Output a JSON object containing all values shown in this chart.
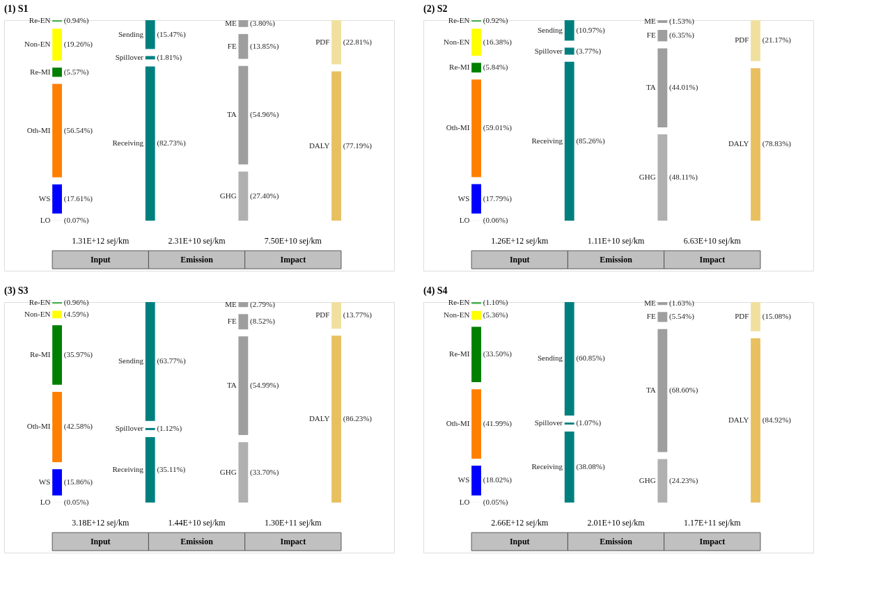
{
  "chart_data": [
    {
      "type": "other",
      "title": "(1) S1",
      "annotations": [
        "1.31E+12 sej/km",
        "2.31E+10 sej/km",
        "7.50E+10 sej/km",
        "Input",
        "Emission",
        "Impact"
      ],
      "categories": [
        "Re-EN",
        "Non-EN",
        "Re-MI",
        "Oth-MI",
        "WS",
        "LO"
      ],
      "values": [
        0.94,
        19.26,
        5.57,
        56.54,
        17.61,
        0.07
      ],
      "value_labels": [
        "(0.94%)",
        "(19.26%)",
        "(5.57%)",
        "(56.54%)",
        "(17.61%)",
        "(0.07%)"
      ],
      "colors": [
        "#4caf50",
        "#ffff00",
        "#007f00",
        "#ff7f00",
        "#0000ff",
        "#aaaaaa"
      ]
    },
    {
      "type": "other",
      "categories": [
        "Sending",
        "Spillover",
        "Receiving"
      ],
      "values": [
        15.47,
        1.81,
        82.73
      ],
      "value_labels": [
        "(15.47%)",
        "(1.81%)",
        "(82.73%)"
      ],
      "colors": [
        "#007f7f",
        "#007f7f",
        "#007f7f"
      ]
    },
    {
      "type": "other",
      "categories": [
        "ME",
        "FE",
        "TA",
        "GHG"
      ],
      "values": [
        3.8,
        13.85,
        54.96,
        27.4
      ],
      "value_labels": [
        "(3.80%)",
        "(13.85%)",
        "(54.96%)",
        "(27.40%)"
      ],
      "colors": [
        "#9e9e9e",
        "#9e9e9e",
        "#9e9e9e",
        "#b0b0b0"
      ]
    },
    {
      "type": "other",
      "categories": [
        "PDF",
        "DALY"
      ],
      "values": [
        22.81,
        77.19
      ],
      "value_labels": [
        "(22.81%)",
        "(77.19%)"
      ],
      "colors": [
        "#f0e0a0",
        "#e8c060"
      ]
    },
    {
      "type": "other",
      "title": "(2) S2",
      "annotations": [
        "1.26E+12 sej/km",
        "1.11E+10 sej/km",
        "6.63E+10 sej/km",
        "Input",
        "Emission",
        "Impact"
      ],
      "categories": [
        "Re-EN",
        "Non-EN",
        "Re-MI",
        "Oth-MI",
        "WS",
        "LO"
      ],
      "values": [
        0.92,
        16.38,
        5.84,
        59.01,
        17.79,
        0.06
      ],
      "value_labels": [
        "(0.92%)",
        "(16.38%)",
        "(5.84%)",
        "(59.01%)",
        "(17.79%)",
        "(0.06%)"
      ],
      "colors": [
        "#4caf50",
        "#ffff00",
        "#007f00",
        "#ff7f00",
        "#0000ff",
        "#aaaaaa"
      ]
    },
    {
      "type": "other",
      "categories": [
        "Sending",
        "Spillover",
        "Receiving"
      ],
      "values": [
        10.97,
        3.77,
        85.26
      ],
      "value_labels": [
        "(10.97%)",
        "(3.77%)",
        "(85.26%)"
      ],
      "colors": [
        "#007f7f",
        "#007f7f",
        "#007f7f"
      ]
    },
    {
      "type": "other",
      "categories": [
        "ME",
        "FE",
        "TA",
        "GHG"
      ],
      "values": [
        1.53,
        6.35,
        44.01,
        48.11
      ],
      "value_labels": [
        "(1.53%)",
        "(6.35%)",
        "(44.01%)",
        "(48.11%)"
      ],
      "colors": [
        "#9e9e9e",
        "#9e9e9e",
        "#9e9e9e",
        "#b0b0b0"
      ]
    },
    {
      "type": "other",
      "categories": [
        "PDF",
        "DALY"
      ],
      "values": [
        21.17,
        78.83
      ],
      "value_labels": [
        "(21.17%)",
        "(78.83%)"
      ],
      "colors": [
        "#f0e0a0",
        "#e8c060"
      ]
    },
    {
      "type": "other",
      "title": "(3) S3",
      "annotations": [
        "3.18E+12 sej/km",
        "1.44E+10 sej/km",
        "1.30E+11 sej/km",
        "Input",
        "Emission",
        "Impact"
      ],
      "categories": [
        "Re-EN",
        "Non-EN",
        "Re-MI",
        "Oth-MI",
        "WS",
        "LO"
      ],
      "values": [
        0.96,
        4.59,
        35.97,
        42.58,
        15.86,
        0.05
      ],
      "value_labels": [
        "(0.96%)",
        "(4.59%)",
        "(35.97%)",
        "(42.58%)",
        "(15.86%)",
        "(0.05%)"
      ],
      "colors": [
        "#4caf50",
        "#ffff00",
        "#007f00",
        "#ff7f00",
        "#0000ff",
        "#aaaaaa"
      ]
    },
    {
      "type": "other",
      "categories": [
        "Sending",
        "Spillover",
        "Receiving"
      ],
      "values": [
        63.77,
        1.12,
        35.11
      ],
      "value_labels": [
        "(63.77%)",
        "(1.12%)",
        "(35.11%)"
      ],
      "colors": [
        "#007f7f",
        "#007f7f",
        "#007f7f"
      ]
    },
    {
      "type": "other",
      "categories": [
        "ME",
        "FE",
        "TA",
        "GHG"
      ],
      "values": [
        2.79,
        8.52,
        54.99,
        33.7
      ],
      "value_labels": [
        "(2.79%)",
        "(8.52%)",
        "(54.99%)",
        "(33.70%)"
      ],
      "colors": [
        "#9e9e9e",
        "#9e9e9e",
        "#9e9e9e",
        "#b0b0b0"
      ]
    },
    {
      "type": "other",
      "categories": [
        "PDF",
        "DALY"
      ],
      "values": [
        13.77,
        86.23
      ],
      "value_labels": [
        "(13.77%)",
        "(86.23%)"
      ],
      "colors": [
        "#f0e0a0",
        "#e8c060"
      ]
    },
    {
      "type": "other",
      "title": "(4) S4",
      "annotations": [
        "2.66E+12 sej/km",
        "2.01E+10 sej/km",
        "1.17E+11 sej/km",
        "Input",
        "Emission",
        "Impact"
      ],
      "categories": [
        "Re-EN",
        "Non-EN",
        "Re-MI",
        "Oth-MI",
        "WS",
        "LO"
      ],
      "values": [
        1.1,
        5.36,
        33.5,
        41.99,
        18.02,
        0.05
      ],
      "value_labels": [
        "(1.10%)",
        "(5.36%)",
        "(33.50%)",
        "(41.99%)",
        "(18.02%)",
        "(0.05%)"
      ],
      "colors": [
        "#4caf50",
        "#ffff00",
        "#007f00",
        "#ff7f00",
        "#0000ff",
        "#aaaaaa"
      ]
    },
    {
      "type": "other",
      "categories": [
        "Sending",
        "Spillover",
        "Receiving"
      ],
      "values": [
        60.85,
        1.07,
        38.08
      ],
      "value_labels": [
        "(60.85%)",
        "(1.07%)",
        "(38.08%)"
      ],
      "colors": [
        "#007f7f",
        "#007f7f",
        "#007f7f"
      ]
    },
    {
      "type": "other",
      "categories": [
        "ME",
        "FE",
        "TA",
        "GHG"
      ],
      "values": [
        1.63,
        5.54,
        68.6,
        24.23
      ],
      "value_labels": [
        "(1.63%)",
        "(5.54%)",
        "(68.60%)",
        "(24.23%)"
      ],
      "colors": [
        "#9e9e9e",
        "#9e9e9e",
        "#9e9e9e",
        "#b0b0b0"
      ]
    },
    {
      "type": "other",
      "categories": [
        "PDF",
        "DALY"
      ],
      "values": [
        15.08,
        84.92
      ],
      "value_labels": [
        "(15.08%)",
        "(84.92%)"
      ],
      "colors": [
        "#f0e0a0",
        "#e8c060"
      ]
    }
  ]
}
